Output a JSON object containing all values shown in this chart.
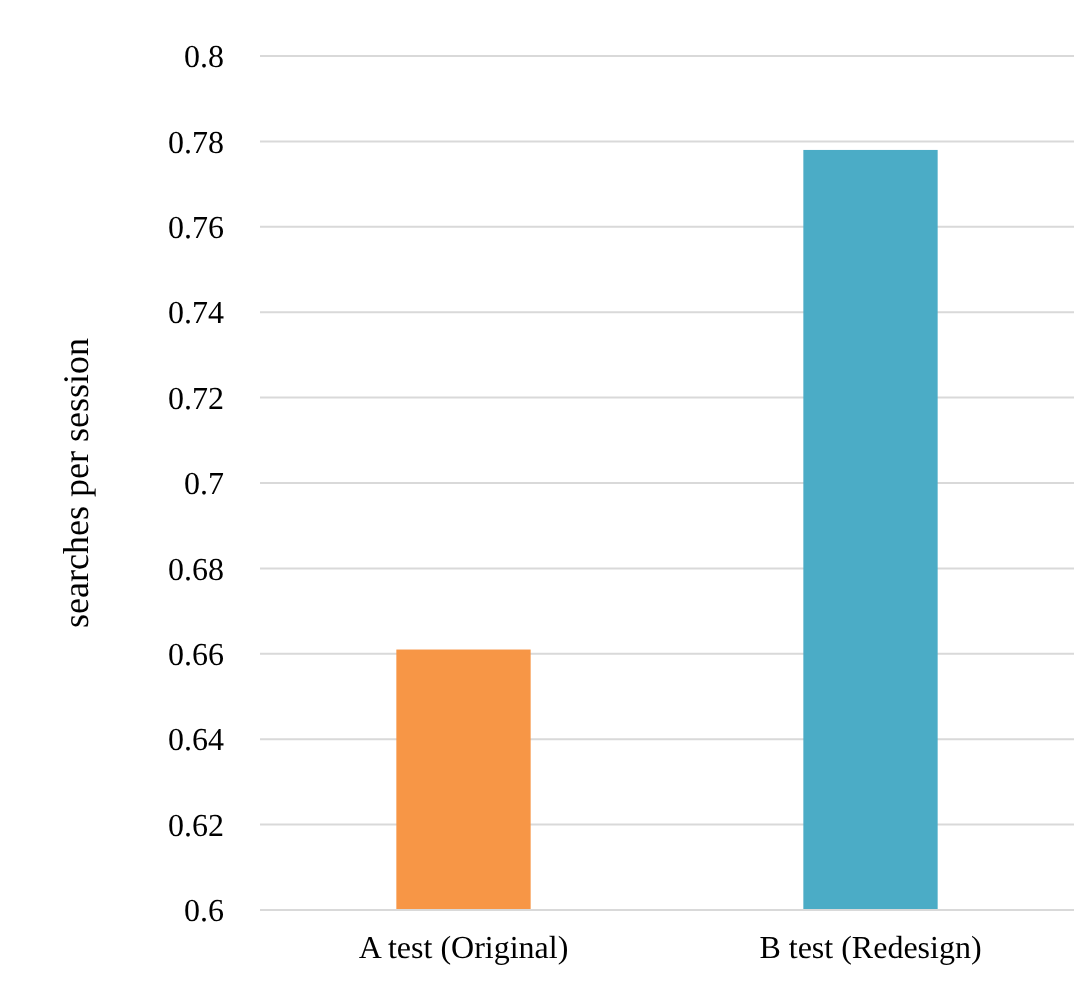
{
  "chart_data": {
    "type": "bar",
    "ylabel": "searches per session",
    "categories": [
      "A test (Original)",
      "B test (Redesign)"
    ],
    "values": [
      0.661,
      0.778
    ],
    "colors": [
      "#f79646",
      "#4bacc6"
    ],
    "ylim": [
      0.6,
      0.8
    ],
    "yticks": [
      0.6,
      0.62,
      0.64,
      0.66,
      0.68,
      0.7,
      0.72,
      0.74,
      0.76,
      0.78,
      0.8
    ],
    "grid": "y"
  }
}
